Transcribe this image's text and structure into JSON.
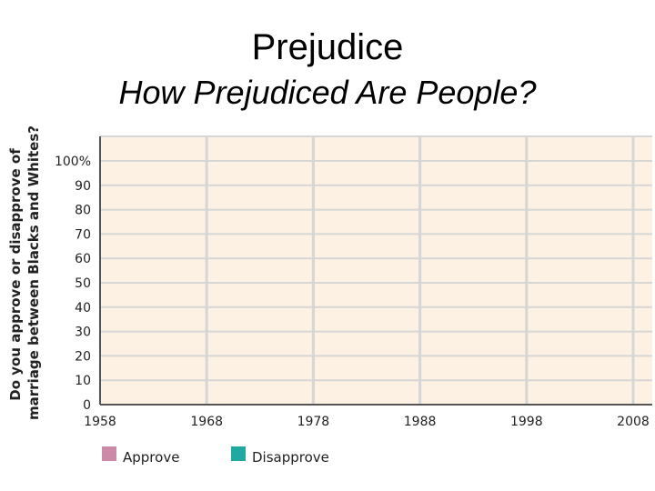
{
  "slide": {
    "title": "Prejudice",
    "subtitle": "How Prejudiced Are People?"
  },
  "chart_data": {
    "type": "bar",
    "title": "",
    "ylabel_line1": "Do you approve  or disapprove of",
    "ylabel_line2": "marriage between Blacks and Whites?",
    "xlabel": "",
    "x_ticks": [
      "1958",
      "1968",
      "1978",
      "1988",
      "1998",
      "2008"
    ],
    "y_ticks": [
      "0",
      "10",
      "20",
      "30",
      "40",
      "50",
      "60",
      "70",
      "80",
      "90",
      "100%"
    ],
    "ylim": [
      0,
      100
    ],
    "xlim": [
      1958,
      2008
    ],
    "grid": true,
    "series": [
      {
        "name": "Approve",
        "color": "#cc8aa8",
        "values": []
      },
      {
        "name": "Disapprove",
        "color": "#1fa9a0",
        "values": []
      }
    ],
    "legend_position": "bottom-left",
    "plot_background": "#fcf1e2",
    "grid_color": "#d6d6d6"
  }
}
